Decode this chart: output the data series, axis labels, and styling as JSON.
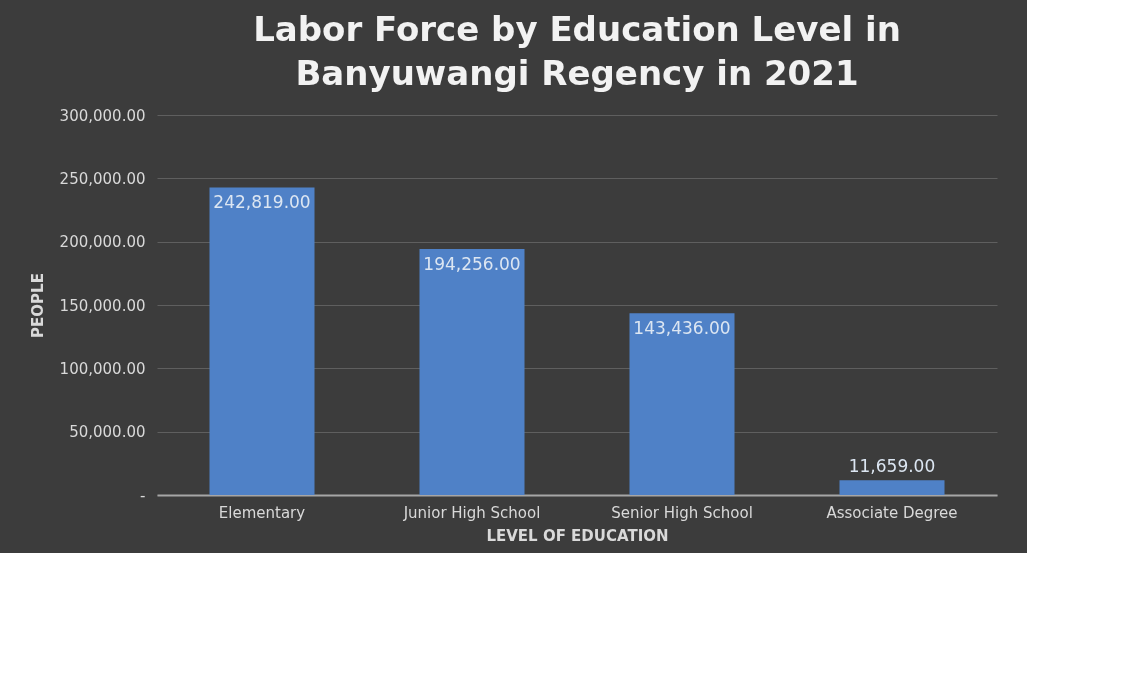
{
  "chart_data": {
    "type": "bar",
    "title": "Labor Force by Education Level in Banyuwangi Regency in 2021",
    "xlabel": "LEVEL OF EDUCATION",
    "ylabel": "PEOPLE",
    "categories": [
      "Elementary",
      "Junior High School",
      "Senior High School",
      "Associate Degree"
    ],
    "values": [
      242819,
      194256,
      143436,
      11659
    ],
    "value_labels": [
      "242,819.00",
      "194,256.00",
      "143,436.00",
      "11,659.00"
    ],
    "color": "#4f81c7",
    "ylim": [
      0,
      300000
    ],
    "yticks": [
      {
        "value": 0,
        "label": "-"
      },
      {
        "value": 50000,
        "label": "50,000.00"
      },
      {
        "value": 100000,
        "label": "100,000.00"
      },
      {
        "value": 150000,
        "label": "150,000.00"
      },
      {
        "value": 200000,
        "label": "200,000.00"
      },
      {
        "value": 250000,
        "label": "250,000.00"
      },
      {
        "value": 300000,
        "label": "300,000.00"
      }
    ],
    "grid": "y"
  }
}
